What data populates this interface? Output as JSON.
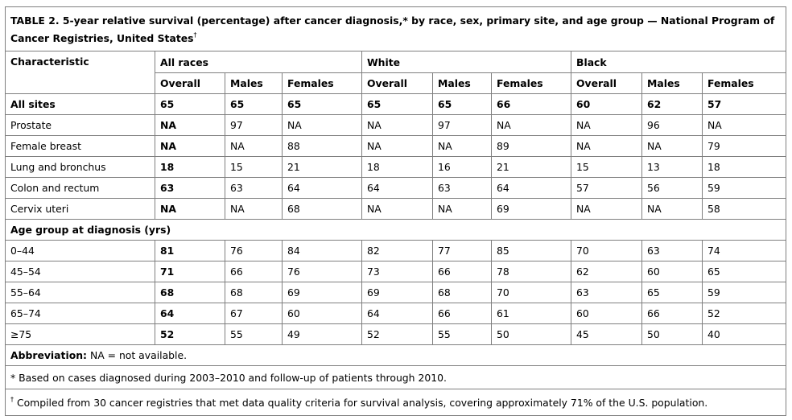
{
  "table": {
    "title": "TABLE 2. 5-year relative survival (percentage) after cancer diagnosis,* by race, sex, primary site, and age group — National Program of Cancer Registries, United States",
    "title_mark": "†",
    "header_characteristic": "Characteristic",
    "groups": [
      "All races",
      "White",
      "Black"
    ],
    "subheaders": [
      "Overall",
      "Males",
      "Females",
      "Overall",
      "Males",
      "Females",
      "Overall",
      "Males",
      "Females"
    ],
    "rows": [
      {
        "label": "All sites",
        "values": [
          "65",
          "65",
          "65",
          "65",
          "65",
          "66",
          "60",
          "62",
          "57"
        ]
      },
      {
        "label": "Prostate",
        "values": [
          "NA",
          "97",
          "NA",
          "NA",
          "97",
          "NA",
          "NA",
          "96",
          "NA"
        ]
      },
      {
        "label": "Female breast",
        "values": [
          "NA",
          "NA",
          "88",
          "NA",
          "NA",
          "89",
          "NA",
          "NA",
          "79"
        ]
      },
      {
        "label": "Lung and bronchus",
        "values": [
          "18",
          "15",
          "21",
          "18",
          "16",
          "21",
          "15",
          "13",
          "18"
        ]
      },
      {
        "label": "Colon and rectum",
        "values": [
          "63",
          "63",
          "64",
          "64",
          "63",
          "64",
          "57",
          "56",
          "59"
        ]
      },
      {
        "label": "Cervix uteri",
        "values": [
          "NA",
          "NA",
          "68",
          "NA",
          "NA",
          "69",
          "NA",
          "NA",
          "58"
        ]
      }
    ],
    "age_section_label": "Age group at diagnosis (yrs)",
    "age_rows": [
      {
        "label": "0–44",
        "values": [
          "81",
          "76",
          "84",
          "82",
          "77",
          "85",
          "70",
          "63",
          "74"
        ]
      },
      {
        "label": "45–54",
        "values": [
          "71",
          "66",
          "76",
          "73",
          "66",
          "78",
          "62",
          "60",
          "65"
        ]
      },
      {
        "label": "55–64",
        "values": [
          "68",
          "68",
          "69",
          "69",
          "68",
          "70",
          "63",
          "65",
          "59"
        ]
      },
      {
        "label": "65–74",
        "values": [
          "64",
          "67",
          "60",
          "64",
          "66",
          "61",
          "60",
          "66",
          "52"
        ]
      },
      {
        "label": "≥75",
        "values": [
          "52",
          "55",
          "49",
          "52",
          "55",
          "50",
          "45",
          "50",
          "40"
        ]
      }
    ],
    "footnotes": {
      "abbreviation_label": "Abbreviation:",
      "abbreviation_text": " NA = not available.",
      "star_note": "* Based on cases diagnosed during 2003–2010 and follow-up of patients through 2010.",
      "dagger_mark": "†",
      "dagger_note": " Compiled from 30 cancer registries that met data quality criteria for survival analysis, covering approximately 71% of the U.S. population."
    }
  }
}
